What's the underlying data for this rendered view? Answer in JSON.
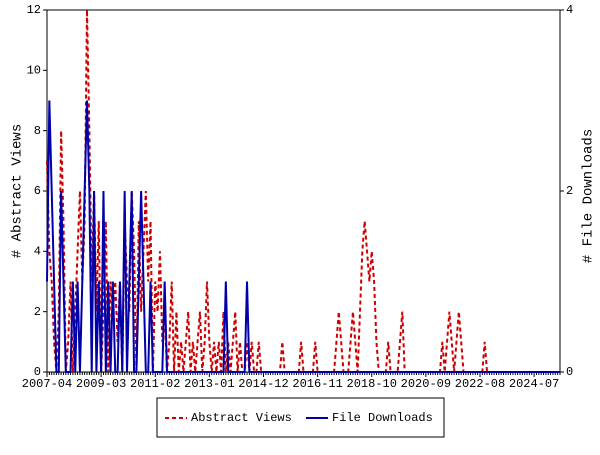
{
  "chart_data": {
    "type": "line",
    "x_tick_every": 23,
    "categories": [
      "2007-04",
      null,
      null,
      null,
      null,
      null,
      null,
      null,
      null,
      null,
      null,
      null,
      null,
      null,
      null,
      null,
      null,
      null,
      null,
      null,
      null,
      null,
      null,
      "2009-03",
      null,
      null,
      null,
      null,
      null,
      null,
      null,
      null,
      null,
      null,
      null,
      null,
      null,
      null,
      null,
      null,
      null,
      null,
      null,
      null,
      null,
      null,
      "2011-02",
      null,
      null,
      null,
      null,
      null,
      null,
      null,
      null,
      null,
      null,
      null,
      null,
      null,
      null,
      null,
      null,
      null,
      null,
      null,
      null,
      null,
      null,
      "2013-01",
      null,
      null,
      null,
      null,
      null,
      null,
      null,
      null,
      null,
      null,
      null,
      null,
      null,
      null,
      null,
      null,
      null,
      null,
      null,
      null,
      null,
      null,
      "2014-12",
      null,
      null,
      null,
      null,
      null,
      null,
      null,
      null,
      null,
      null,
      null,
      null,
      null,
      null,
      null,
      null,
      null,
      null,
      null,
      null,
      null,
      null,
      "2016-11",
      null,
      null,
      null,
      null,
      null,
      null,
      null,
      null,
      null,
      null,
      null,
      null,
      null,
      null,
      null,
      null,
      null,
      null,
      null,
      null,
      null,
      null,
      "2018-10",
      null,
      null,
      null,
      null,
      null,
      null,
      null,
      null,
      null,
      null,
      null,
      null,
      null,
      null,
      null,
      null,
      null,
      null,
      null,
      null,
      null,
      null,
      "2020-09",
      null,
      null,
      null,
      null,
      null,
      null,
      null,
      null,
      null,
      null,
      null,
      null,
      null,
      null,
      null,
      null,
      null,
      null,
      null,
      null,
      null,
      null,
      "2022-08",
      null,
      null,
      null,
      null,
      null,
      null,
      null,
      null,
      null,
      null,
      null,
      null,
      null,
      null,
      null,
      null,
      null,
      null,
      null,
      null,
      null,
      null,
      "2024-07",
      null,
      null,
      null,
      null,
      null,
      null,
      null,
      null,
      null,
      null,
      null
    ],
    "series": [
      {
        "name": "Abstract Views",
        "color": "#cc0000",
        "dash": true,
        "values": [
          7,
          4,
          3,
          1,
          0,
          2,
          8,
          5,
          0,
          1,
          3,
          0,
          2,
          4,
          6,
          3,
          5,
          12,
          8,
          3,
          6,
          2,
          5,
          0,
          2,
          5,
          0,
          3,
          2,
          3,
          1,
          3,
          0,
          5,
          3,
          2,
          6,
          4,
          0,
          5,
          2,
          4,
          6,
          3,
          5,
          0,
          3,
          2,
          4,
          1,
          2,
          0,
          1,
          3,
          0,
          2,
          0,
          1,
          0,
          1,
          2,
          0,
          1,
          0,
          1,
          2,
          0,
          1,
          3,
          1,
          0,
          1,
          0,
          1,
          0,
          2,
          0,
          1,
          0,
          1,
          2,
          0,
          1,
          0,
          0,
          1,
          0,
          1,
          0,
          0,
          1,
          0,
          0,
          0,
          0,
          0,
          0,
          0,
          0,
          0,
          1,
          0,
          0,
          0,
          0,
          0,
          0,
          0,
          1,
          0,
          0,
          0,
          0,
          0,
          1,
          0,
          0,
          0,
          0,
          0,
          0,
          0,
          0,
          1,
          2,
          1,
          0,
          0,
          0,
          1,
          2,
          1,
          0,
          2,
          4,
          5,
          4,
          3,
          4,
          3,
          1,
          0,
          0,
          0,
          0,
          1,
          0,
          0,
          0,
          0,
          1,
          2,
          0,
          0,
          0,
          0,
          0,
          0,
          0,
          0,
          0,
          0,
          0,
          0,
          0,
          0,
          0,
          0,
          1,
          0,
          1,
          2,
          1,
          0,
          1,
          2,
          1,
          0,
          0,
          0,
          0,
          0,
          0,
          0,
          0,
          0,
          1,
          0,
          0,
          0,
          0,
          0,
          0,
          0,
          0,
          0,
          0,
          0,
          0,
          0,
          0,
          0,
          0,
          0,
          0,
          0,
          0,
          0,
          0,
          0,
          0,
          0,
          0,
          0,
          0,
          0,
          0,
          0,
          0
        ]
      },
      {
        "name": "File Downloads",
        "color": "#0000aa",
        "dash": false,
        "axis": "y2",
        "values": [
          1,
          3,
          2,
          1,
          0,
          0,
          2,
          1,
          0,
          0,
          0,
          1,
          0,
          1,
          0,
          1,
          2,
          3,
          2,
          0,
          2,
          0,
          1,
          0,
          2,
          0,
          1,
          0,
          1,
          0,
          0,
          1,
          0,
          2,
          0,
          1,
          2,
          0,
          0,
          1,
          2,
          1,
          0,
          0,
          1,
          0,
          0,
          0,
          0,
          0,
          1,
          0,
          0,
          0,
          0,
          0,
          0,
          0,
          0,
          0,
          0,
          0,
          0,
          0,
          0,
          0,
          0,
          0,
          0,
          0,
          0,
          0,
          0,
          0,
          0,
          0,
          1,
          0,
          0,
          0,
          0,
          0,
          0,
          0,
          0,
          1,
          0,
          0,
          0,
          0,
          0,
          0,
          0,
          0,
          0,
          0,
          0,
          0,
          0,
          0,
          0,
          0,
          0,
          0,
          0,
          0,
          0,
          0,
          0,
          0,
          0,
          0,
          0,
          0,
          0,
          0,
          0,
          0,
          0,
          0,
          0,
          0,
          0,
          0,
          0,
          0,
          0,
          0,
          0,
          0,
          0,
          0,
          0,
          0,
          0,
          0,
          0,
          0,
          0,
          0,
          0,
          0,
          0,
          0,
          0,
          0,
          0,
          0,
          0,
          0,
          0,
          0,
          0,
          0,
          0,
          0,
          0,
          0,
          0,
          0,
          0,
          0,
          0,
          0,
          0,
          0,
          0,
          0,
          0,
          0,
          0,
          0,
          0,
          0,
          0,
          0,
          0,
          0,
          0,
          0,
          0,
          0,
          0,
          0,
          0,
          0,
          0,
          0,
          0,
          0,
          0,
          0,
          0,
          0,
          0,
          0,
          0,
          0,
          0,
          0,
          0,
          0,
          0,
          0,
          0,
          0,
          0,
          0,
          0,
          0,
          0,
          0,
          0,
          0,
          0,
          0,
          0,
          0,
          0
        ]
      }
    ],
    "y_label": "# Abstract Views",
    "y2_label": "# File Downloads",
    "ylim": [
      0,
      12
    ],
    "yticks": [
      0,
      2,
      4,
      6,
      8,
      10,
      12
    ],
    "y2lim": [
      0,
      4
    ],
    "y2ticks": [
      0,
      2,
      4
    ],
    "legend": "bottom"
  }
}
